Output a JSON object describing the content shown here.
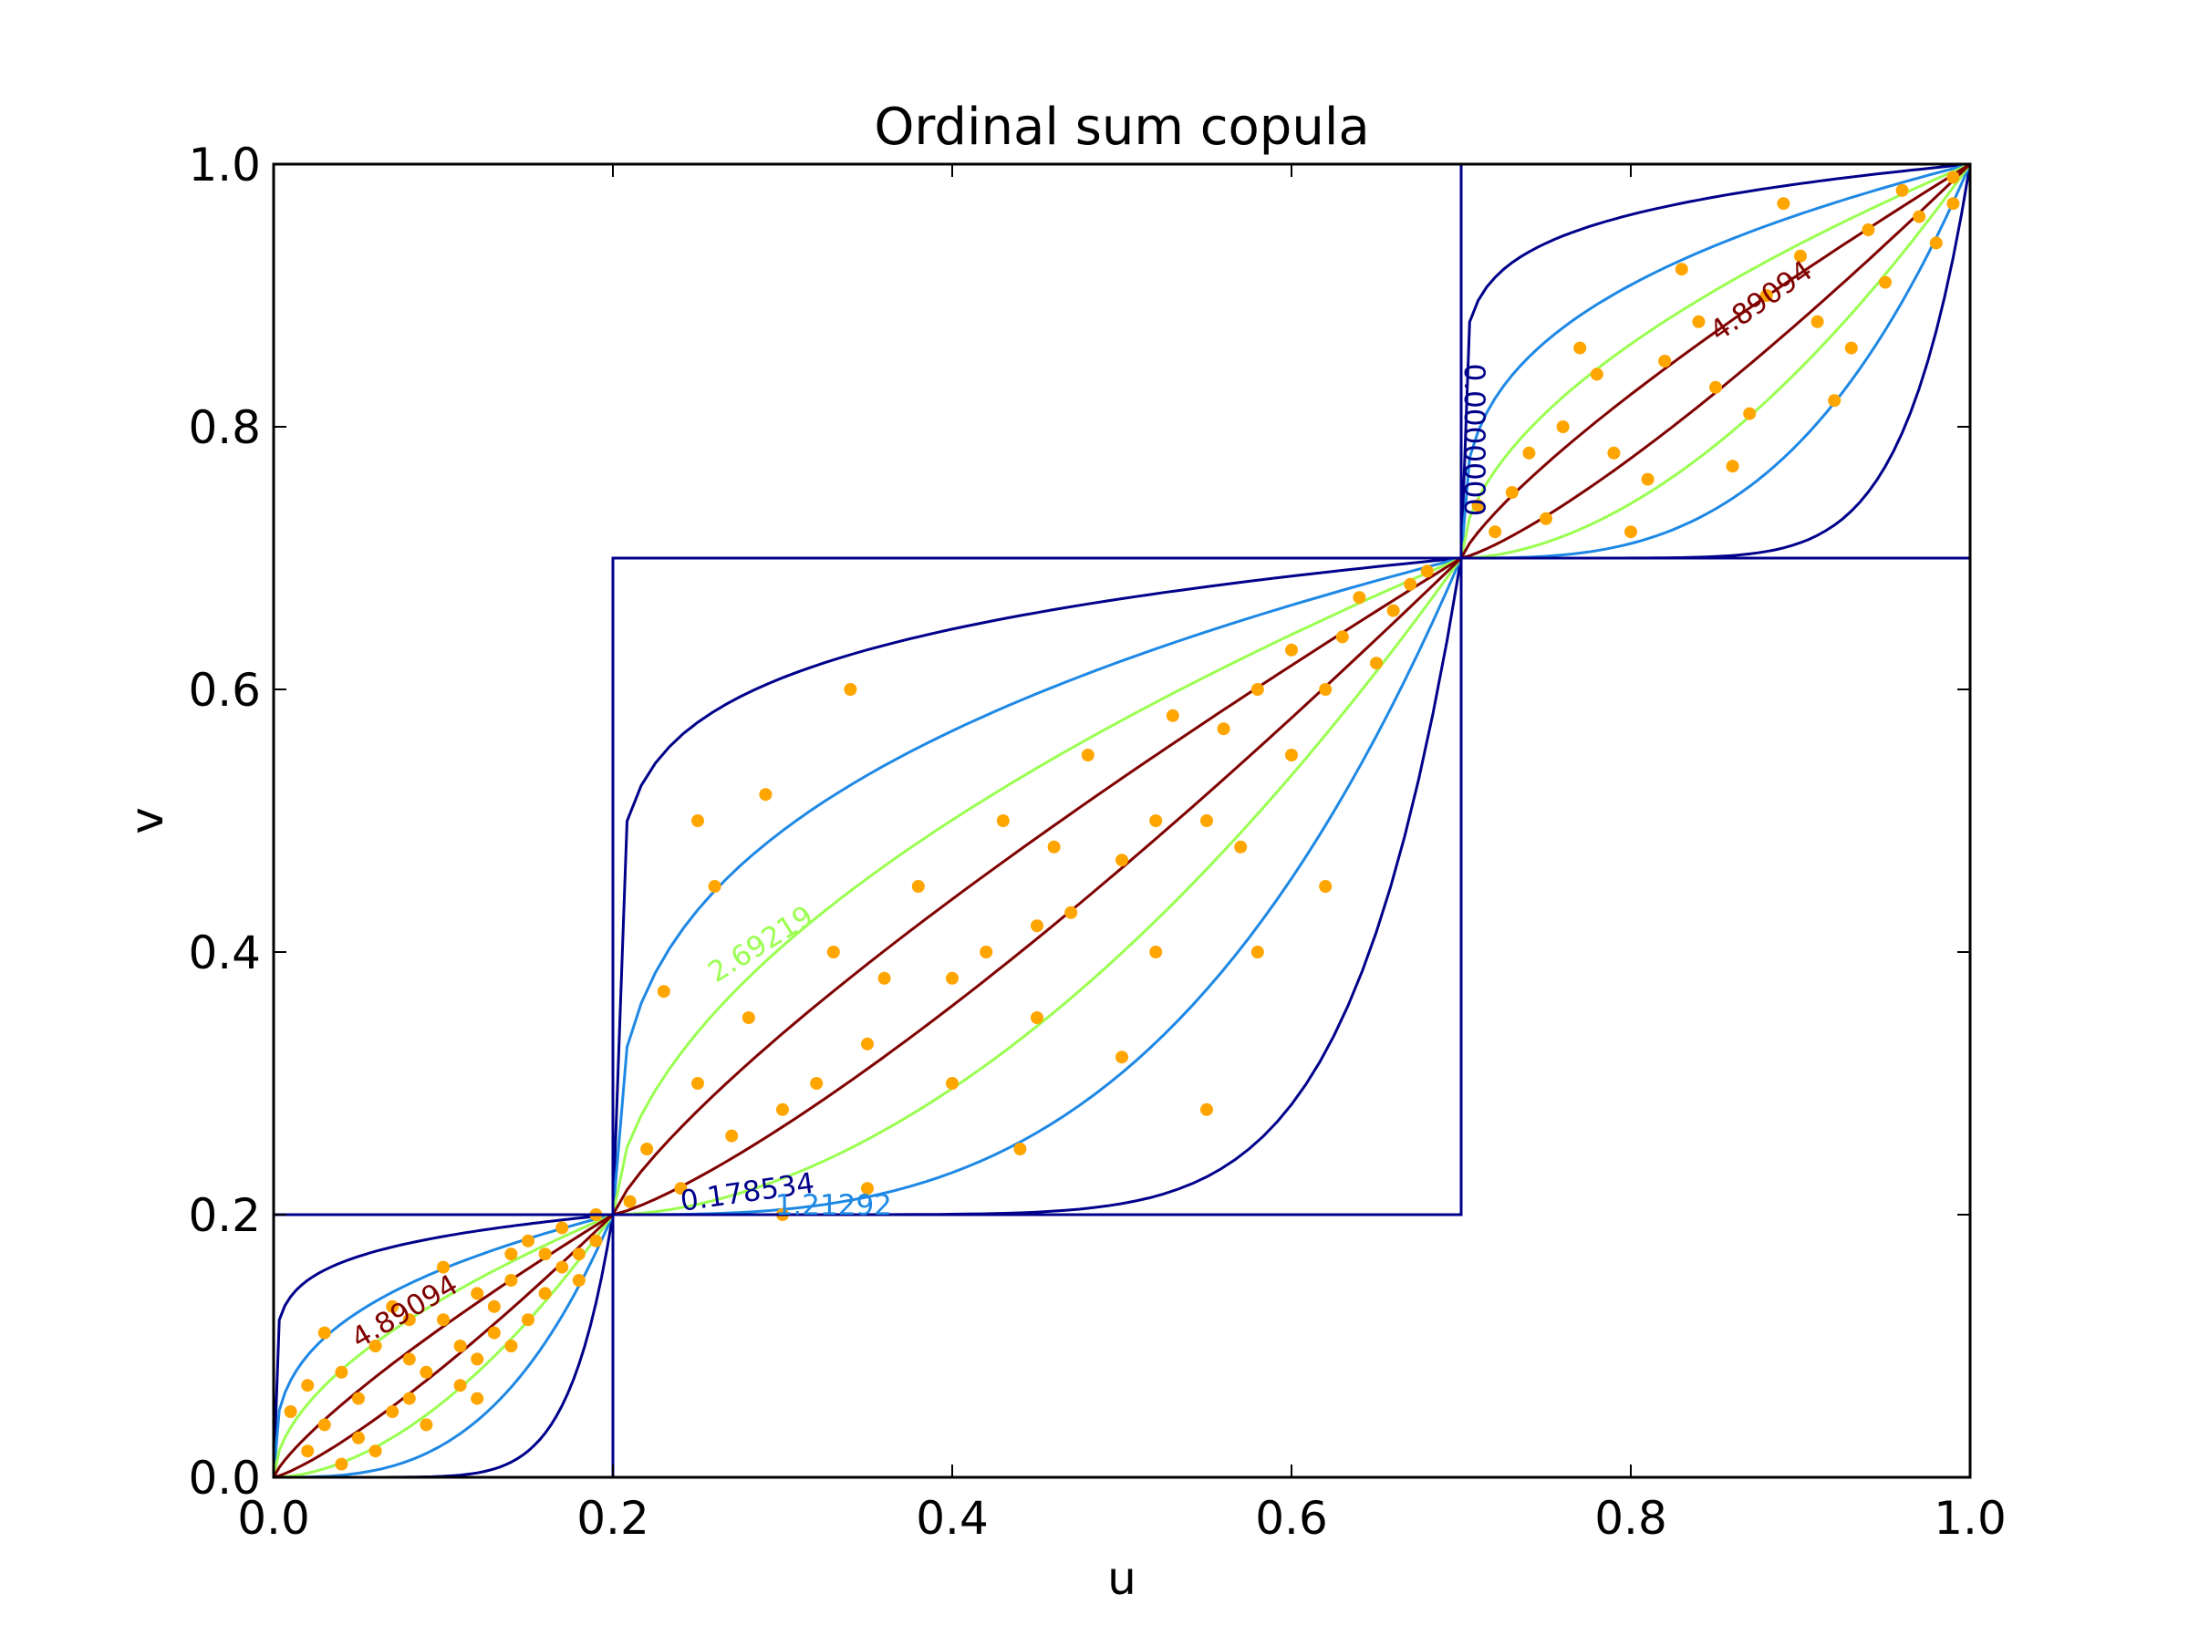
{
  "chart_data": {
    "type": "scatter",
    "title": "Ordinal sum copula",
    "xlabel": "u",
    "ylabel": "v",
    "xlim": [
      0.0,
      1.0
    ],
    "ylim": [
      0.0,
      1.0
    ],
    "xticks": [
      "0.0",
      "0.2",
      "0.4",
      "0.6",
      "0.8",
      "1.0"
    ],
    "yticks": [
      "0.0",
      "0.2",
      "0.4",
      "0.6",
      "0.8",
      "1.0"
    ],
    "grid": false,
    "blocks": [
      {
        "u_range": [
          0.0,
          0.2
        ],
        "v_range": [
          0.0,
          0.2
        ]
      },
      {
        "u_range": [
          0.2,
          0.7
        ],
        "v_range": [
          0.2,
          0.7
        ]
      },
      {
        "u_range": [
          0.7,
          1.0
        ],
        "v_range": [
          0.7,
          1.0
        ]
      }
    ],
    "contour_levels": [
      {
        "value": 0.178534,
        "label": "0.178534",
        "color": "#00008b"
      },
      {
        "value": 1.21292,
        "label": "1.21292",
        "color": "#1e88e5"
      },
      {
        "value": 2.69219,
        "label": "2.69219",
        "color": "#9aff50"
      },
      {
        "value": 4.89094,
        "label": "4.89094",
        "color": "#800000"
      }
    ],
    "extra_contour_label": "0.0000000",
    "scatter": {
      "color": "#ffa500",
      "points": [
        [
          0.03,
          0.04
        ],
        [
          0.05,
          0.03
        ],
        [
          0.08,
          0.06
        ],
        [
          0.1,
          0.12
        ],
        [
          0.12,
          0.09
        ],
        [
          0.14,
          0.15
        ],
        [
          0.16,
          0.14
        ],
        [
          0.18,
          0.17
        ],
        [
          0.06,
          0.1
        ],
        [
          0.09,
          0.04
        ],
        [
          0.11,
          0.07
        ],
        [
          0.13,
          0.11
        ],
        [
          0.15,
          0.18
        ],
        [
          0.02,
          0.02
        ],
        [
          0.04,
          0.08
        ],
        [
          0.07,
          0.13
        ],
        [
          0.17,
          0.19
        ],
        [
          0.19,
          0.18
        ],
        [
          0.12,
          0.14
        ],
        [
          0.08,
          0.09
        ],
        [
          0.05,
          0.06
        ],
        [
          0.14,
          0.1
        ],
        [
          0.1,
          0.16
        ],
        [
          0.16,
          0.17
        ],
        [
          0.01,
          0.05
        ],
        [
          0.03,
          0.11
        ],
        [
          0.06,
          0.02
        ],
        [
          0.09,
          0.08
        ],
        [
          0.13,
          0.13
        ],
        [
          0.18,
          0.15
        ],
        [
          0.15,
          0.12
        ],
        [
          0.11,
          0.1
        ],
        [
          0.07,
          0.05
        ],
        [
          0.04,
          0.01
        ],
        [
          0.02,
          0.07
        ],
        [
          0.17,
          0.16
        ],
        [
          0.19,
          0.2
        ],
        [
          0.12,
          0.06
        ],
        [
          0.08,
          0.12
        ],
        [
          0.14,
          0.17
        ],
        [
          0.22,
          0.25
        ],
        [
          0.25,
          0.3
        ],
        [
          0.28,
          0.35
        ],
        [
          0.3,
          0.28
        ],
        [
          0.33,
          0.4
        ],
        [
          0.35,
          0.33
        ],
        [
          0.38,
          0.45
        ],
        [
          0.4,
          0.38
        ],
        [
          0.43,
          0.5
        ],
        [
          0.45,
          0.42
        ],
        [
          0.48,
          0.55
        ],
        [
          0.5,
          0.47
        ],
        [
          0.53,
          0.58
        ],
        [
          0.55,
          0.5
        ],
        [
          0.58,
          0.6
        ],
        [
          0.6,
          0.55
        ],
        [
          0.63,
          0.64
        ],
        [
          0.65,
          0.62
        ],
        [
          0.68,
          0.69
        ],
        [
          0.24,
          0.22
        ],
        [
          0.27,
          0.26
        ],
        [
          0.32,
          0.3
        ],
        [
          0.36,
          0.38
        ],
        [
          0.42,
          0.4
        ],
        [
          0.46,
          0.48
        ],
        [
          0.52,
          0.5
        ],
        [
          0.56,
          0.57
        ],
        [
          0.62,
          0.6
        ],
        [
          0.66,
          0.66
        ],
        [
          0.23,
          0.37
        ],
        [
          0.26,
          0.45
        ],
        [
          0.29,
          0.52
        ],
        [
          0.34,
          0.6
        ],
        [
          0.4,
          0.3
        ],
        [
          0.44,
          0.25
        ],
        [
          0.5,
          0.32
        ],
        [
          0.55,
          0.28
        ],
        [
          0.58,
          0.4
        ],
        [
          0.62,
          0.45
        ],
        [
          0.3,
          0.2
        ],
        [
          0.35,
          0.22
        ],
        [
          0.45,
          0.35
        ],
        [
          0.47,
          0.43
        ],
        [
          0.52,
          0.4
        ],
        [
          0.57,
          0.48
        ],
        [
          0.6,
          0.63
        ],
        [
          0.64,
          0.67
        ],
        [
          0.67,
          0.68
        ],
        [
          0.21,
          0.21
        ],
        [
          0.25,
          0.5
        ],
        [
          0.73,
          0.75
        ],
        [
          0.76,
          0.8
        ],
        [
          0.79,
          0.78
        ],
        [
          0.82,
          0.85
        ],
        [
          0.85,
          0.83
        ],
        [
          0.88,
          0.9
        ],
        [
          0.91,
          0.88
        ],
        [
          0.94,
          0.95
        ],
        [
          0.97,
          0.96
        ],
        [
          0.99,
          0.99
        ],
        [
          0.72,
          0.72
        ],
        [
          0.75,
          0.73
        ],
        [
          0.78,
          0.84
        ],
        [
          0.81,
          0.76
        ],
        [
          0.84,
          0.88
        ],
        [
          0.87,
          0.81
        ],
        [
          0.9,
          0.93
        ],
        [
          0.93,
          0.86
        ],
        [
          0.96,
          0.98
        ],
        [
          0.98,
          0.94
        ],
        [
          0.74,
          0.78
        ],
        [
          0.77,
          0.86
        ],
        [
          0.8,
          0.72
        ],
        [
          0.83,
          0.92
        ],
        [
          0.86,
          0.77
        ],
        [
          0.89,
          0.97
        ],
        [
          0.92,
          0.82
        ],
        [
          0.95,
          0.91
        ],
        [
          0.71,
          0.74
        ],
        [
          0.99,
          0.97
        ]
      ]
    }
  }
}
